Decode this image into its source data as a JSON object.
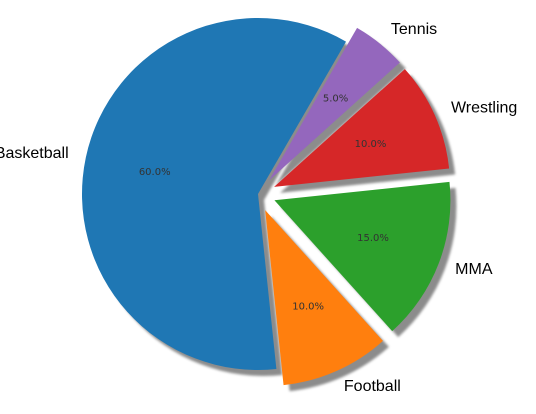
{
  "chart_data": {
    "type": "pie",
    "title": "",
    "categories": [
      "Basketball",
      "Football",
      "MMA",
      "Wrestling",
      "Tennis"
    ],
    "values": [
      60.0,
      10.0,
      15.0,
      10.0,
      5.0
    ],
    "percent_labels": [
      "60.0%",
      "10.0%",
      "15.0%",
      "10.0%",
      "5.0%"
    ],
    "explode": [
      0,
      0.1,
      0.1,
      0.1,
      0.1
    ],
    "start_angle_deg": 60,
    "direction": "counterclockwise",
    "shadow": true,
    "legend": "none",
    "colors": [
      "#1f77b4",
      "#ff7f0e",
      "#2ca02c",
      "#d62728",
      "#9467bd"
    ]
  }
}
